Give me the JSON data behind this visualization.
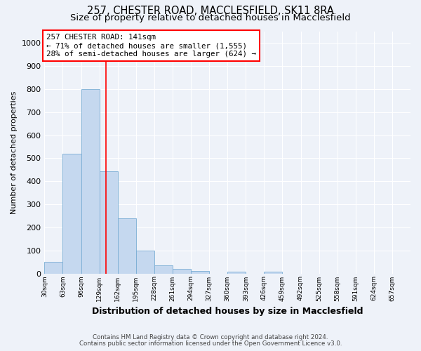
{
  "title1": "257, CHESTER ROAD, MACCLESFIELD, SK11 8RA",
  "title2": "Size of property relative to detached houses in Macclesfield",
  "xlabel": "Distribution of detached houses by size in Macclesfield",
  "ylabel": "Number of detached properties",
  "footnote1": "Contains HM Land Registry data © Crown copyright and database right 2024.",
  "footnote2": "Contains public sector information licensed under the Open Government Licence v3.0.",
  "annotation_line1": "257 CHESTER ROAD: 141sqm",
  "annotation_line2": "← 71% of detached houses are smaller (1,555)",
  "annotation_line3": "28% of semi-detached houses are larger (624) →",
  "bin_edges": [
    30,
    63,
    96,
    129,
    162,
    195,
    228,
    261,
    294,
    327,
    360,
    393,
    426,
    459,
    492,
    525,
    558,
    591,
    624,
    657,
    690
  ],
  "bar_heights": [
    50,
    520,
    800,
    445,
    240,
    98,
    35,
    20,
    12,
    0,
    8,
    0,
    8,
    0,
    0,
    0,
    0,
    0,
    0,
    0
  ],
  "bar_color": "#c5d8ef",
  "bar_edge_color": "#7aadd4",
  "property_line_x": 141,
  "property_line_color": "red",
  "ylim": [
    0,
    1050
  ],
  "background_color": "#eef2f9",
  "annotation_box_color": "white",
  "annotation_box_edge": "red",
  "grid_color": "white",
  "title_fontsize": 10.5,
  "subtitle_fontsize": 9.5,
  "yticks": [
    0,
    100,
    200,
    300,
    400,
    500,
    600,
    700,
    800,
    900,
    1000
  ]
}
